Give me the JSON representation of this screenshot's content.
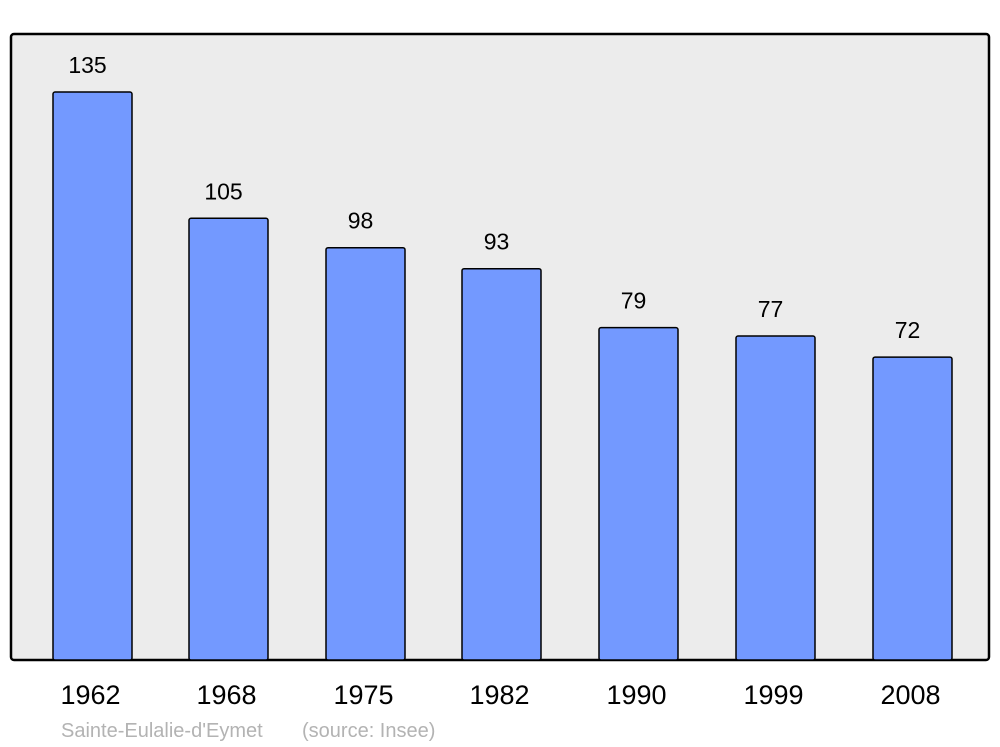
{
  "chart_data": {
    "type": "bar",
    "categories": [
      "1962",
      "1968",
      "1975",
      "1982",
      "1990",
      "1999",
      "2008"
    ],
    "values": [
      135,
      105,
      98,
      93,
      79,
      77,
      72
    ],
    "data_labels": [
      "135",
      "105",
      "98",
      "93",
      "79",
      "77",
      "72"
    ],
    "title": "",
    "xlabel": "",
    "ylabel": "",
    "grid": false,
    "colors": {
      "bar": "#7399ff",
      "plot_background": "#ececec",
      "border": "#000000",
      "footer_text": "#b3b3b3"
    }
  },
  "footer": {
    "place": "Sainte-Eulalie-d'Eymet",
    "source": "(source: Insee)"
  }
}
